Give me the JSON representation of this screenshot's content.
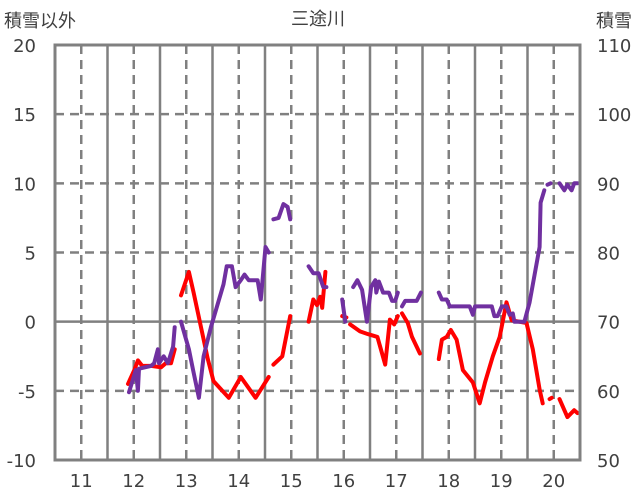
{
  "chart_data": {
    "type": "line",
    "title": "三途川",
    "ylabel_left": "積雪以外",
    "ylabel_right": "積雪",
    "xlim": [
      10.5,
      20.5
    ],
    "ylim_left": [
      -10,
      20
    ],
    "ylim_right": [
      50,
      110
    ],
    "x_ticks": [
      "11",
      "12",
      "13",
      "14",
      "15",
      "16",
      "17",
      "18",
      "19",
      "20"
    ],
    "x_tick_values": [
      11,
      12,
      13,
      14,
      15,
      16,
      17,
      18,
      19,
      20
    ],
    "y_left_ticks": [
      20,
      15,
      10,
      5,
      0,
      -5,
      -10
    ],
    "y_right_ticks": [
      110,
      100,
      90,
      80,
      70,
      60,
      50
    ],
    "grid": true,
    "legend": "none",
    "series": [
      {
        "name": "積雪以外",
        "axis": "left",
        "color": "#ff0000",
        "segments": [
          [
            [
              11.89,
              -4.5
            ],
            [
              12.01,
              -3.5
            ],
            [
              12.08,
              -2.8
            ],
            [
              12.16,
              -3.2
            ],
            [
              12.33,
              -3.2
            ],
            [
              12.52,
              -3.3
            ],
            [
              12.61,
              -3
            ],
            [
              12.71,
              -3
            ],
            [
              12.78,
              -2
            ]
          ],
          [
            [
              12.9,
              1.9
            ],
            [
              13.05,
              3.6
            ],
            [
              13.14,
              2.1
            ],
            [
              13.41,
              -2.7
            ],
            [
              13.52,
              -4.3
            ],
            [
              13.81,
              -5.5
            ],
            [
              14.04,
              -4
            ],
            [
              14.32,
              -5.5
            ],
            [
              14.57,
              -4
            ]
          ],
          [
            [
              14.66,
              -3.1
            ],
            [
              14.83,
              -2.5
            ],
            [
              14.98,
              0.4
            ]
          ],
          [
            [
              15.33,
              0
            ],
            [
              15.42,
              1.6
            ],
            [
              15.49,
              1.2
            ],
            [
              15.55,
              1.8
            ],
            [
              15.59,
              1.0
            ],
            [
              15.65,
              3.6
            ]
          ],
          [
            [
              15.97,
              0.4
            ],
            [
              16.05,
              0.3
            ]
          ],
          [
            [
              16.12,
              -0.2
            ],
            [
              16.31,
              -0.7
            ],
            [
              16.46,
              -0.9
            ],
            [
              16.64,
              -1.1
            ],
            [
              16.79,
              -3.1
            ],
            [
              16.88,
              0.15
            ],
            [
              16.96,
              -0.2
            ],
            [
              17.03,
              0.4
            ]
          ],
          [
            [
              17.11,
              0.6
            ],
            [
              17.22,
              -0.1
            ],
            [
              17.3,
              -1.1
            ],
            [
              17.45,
              -2.3
            ]
          ],
          [
            [
              17.81,
              -2.7
            ],
            [
              17.87,
              -1.3
            ],
            [
              17.96,
              -1.1
            ],
            [
              18.04,
              -0.6
            ],
            [
              18.15,
              -1.3
            ],
            [
              18.27,
              -3.5
            ],
            [
              18.46,
              -4.4
            ],
            [
              18.59,
              -5.9
            ],
            [
              18.69,
              -4.4
            ],
            [
              18.84,
              -2.5
            ],
            [
              18.97,
              -1.1
            ],
            [
              19.1,
              1.4
            ],
            [
              19.2,
              0.1
            ],
            [
              19.48,
              -0.1
            ],
            [
              19.6,
              -2
            ],
            [
              19.73,
              -4.9
            ],
            [
              19.79,
              -5.9
            ]
          ],
          [
            [
              19.92,
              -5.6
            ],
            [
              19.96,
              -5.5
            ]
          ],
          [
            [
              20.11,
              -5.6
            ],
            [
              20.26,
              -6.9
            ],
            [
              20.39,
              -6.4
            ],
            [
              20.45,
              -6.6
            ]
          ]
        ]
      },
      {
        "name": "積雪",
        "axis": "right",
        "color": "#7030a0",
        "segments": [
          [
            [
              11.91,
              59.8
            ],
            [
              12.04,
              63
            ],
            [
              12.08,
              60
            ],
            [
              12.1,
              63.2
            ],
            [
              12.33,
              63.6
            ],
            [
              12.39,
              64
            ],
            [
              12.46,
              66
            ],
            [
              12.48,
              64
            ],
            [
              12.57,
              65
            ],
            [
              12.65,
              64
            ],
            [
              12.75,
              66.4
            ],
            [
              12.78,
              69.2
            ]
          ],
          [
            [
              12.9,
              70
            ],
            [
              13.05,
              66
            ],
            [
              13.13,
              63
            ],
            [
              13.24,
              59
            ],
            [
              13.33,
              65
            ],
            [
              13.47,
              69.2
            ],
            [
              13.71,
              75.4
            ],
            [
              13.77,
              78
            ],
            [
              13.87,
              78
            ],
            [
              13.94,
              75
            ],
            [
              14.04,
              76
            ],
            [
              14.11,
              76.8
            ],
            [
              14.19,
              76
            ],
            [
              14.36,
              76
            ],
            [
              14.42,
              73.2
            ],
            [
              14.51,
              80.8
            ],
            [
              14.57,
              80
            ]
          ],
          [
            [
              14.66,
              84.8
            ],
            [
              14.76,
              85
            ],
            [
              14.85,
              87
            ],
            [
              14.93,
              86.6
            ],
            [
              14.98,
              84.8
            ]
          ],
          [
            [
              15.33,
              78
            ],
            [
              15.42,
              77
            ],
            [
              15.52,
              77
            ],
            [
              15.61,
              75
            ],
            [
              15.67,
              75
            ]
          ],
          [
            [
              15.97,
              73.2
            ],
            [
              16.03,
              70
            ]
          ],
          [
            [
              16.18,
              75
            ],
            [
              16.26,
              76
            ],
            [
              16.35,
              74.6
            ],
            [
              16.44,
              70
            ],
            [
              16.52,
              75
            ],
            [
              16.6,
              76
            ],
            [
              16.62,
              74.2
            ],
            [
              16.67,
              75.8
            ],
            [
              16.75,
              74.2
            ],
            [
              16.86,
              74.2
            ],
            [
              16.92,
              73
            ],
            [
              16.98,
              73
            ],
            [
              17.03,
              74.2
            ]
          ],
          [
            [
              17.11,
              72.2
            ],
            [
              17.17,
              73
            ],
            [
              17.39,
              73
            ],
            [
              17.47,
              74.2
            ]
          ],
          [
            [
              17.81,
              74.2
            ],
            [
              17.87,
              73.2
            ],
            [
              17.96,
              73.2
            ],
            [
              18.02,
              72.2
            ],
            [
              18.4,
              72.2
            ],
            [
              18.46,
              71
            ],
            [
              18.5,
              72.2
            ],
            [
              18.82,
              72.2
            ],
            [
              18.87,
              70.8
            ],
            [
              18.93,
              70.8
            ],
            [
              19.01,
              72.2
            ],
            [
              19.1,
              72.2
            ],
            [
              19.16,
              71
            ],
            [
              19.22,
              71.2
            ],
            [
              19.25,
              70
            ],
            [
              19.44,
              70
            ],
            [
              19.54,
              72.8
            ],
            [
              19.73,
              80.8
            ],
            [
              19.75,
              87.2
            ],
            [
              19.82,
              89
            ]
          ],
          [
            [
              19.88,
              89.8
            ],
            [
              19.94,
              90
            ]
          ],
          [
            [
              20.11,
              90
            ],
            [
              20.2,
              89
            ],
            [
              20.26,
              89.8
            ],
            [
              20.34,
              89
            ],
            [
              20.39,
              90
            ],
            [
              20.45,
              90
            ]
          ]
        ]
      }
    ]
  }
}
